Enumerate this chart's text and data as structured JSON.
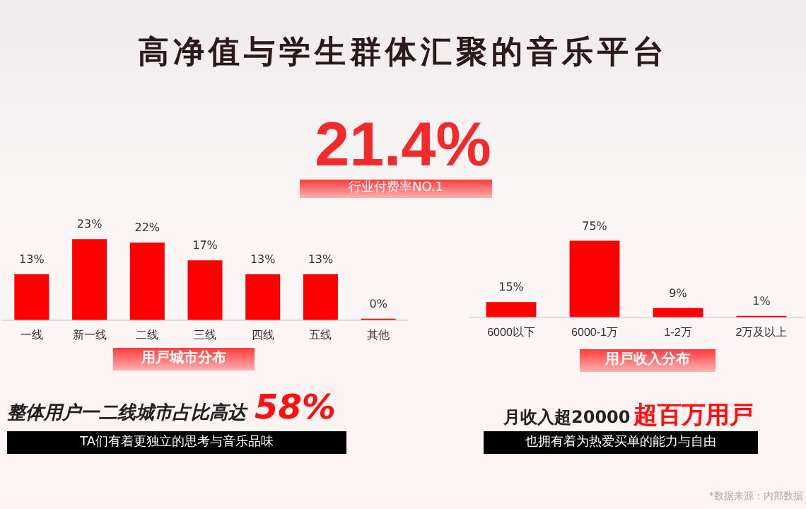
{
  "chart_data": [
    {
      "type": "other",
      "title": "高净值与学生群体汇聚的音乐平台",
      "annotations": [
        "21.4%",
        "行业付费率NO.1",
        "整体用户一二线城市占比高达",
        "58%",
        "TA们有着更独立的思考与音乐品味",
        "月收入超20000",
        "超百万用戸",
        "也拥有着为热爱买单的能力与自由",
        "*数据来源：内部数据"
      ]
    },
    {
      "type": "bar",
      "xlabel": "用戸城市分布",
      "categories": [
        "一线",
        "新一线",
        "二线",
        "三线",
        "四线",
        "五线",
        "其他"
      ],
      "values": [
        13,
        23,
        22,
        17,
        13,
        13,
        0
      ],
      "value_labels": [
        "13%",
        "23%",
        "22%",
        "17%",
        "13%",
        "13%",
        "0%"
      ],
      "color": "#ff0000",
      "tick_labels": "x",
      "grid": false
    },
    {
      "type": "bar",
      "xlabel": "用戸收入分布",
      "categories": [
        "6000以下",
        "6000-1万",
        "1-2万",
        "2万及以上"
      ],
      "values": [
        15,
        75,
        9,
        1
      ],
      "value_labels": [
        "15%",
        "75%",
        "9%",
        "1%"
      ],
      "color": "#ff0000",
      "tick_labels": "x",
      "grid": false
    }
  ]
}
